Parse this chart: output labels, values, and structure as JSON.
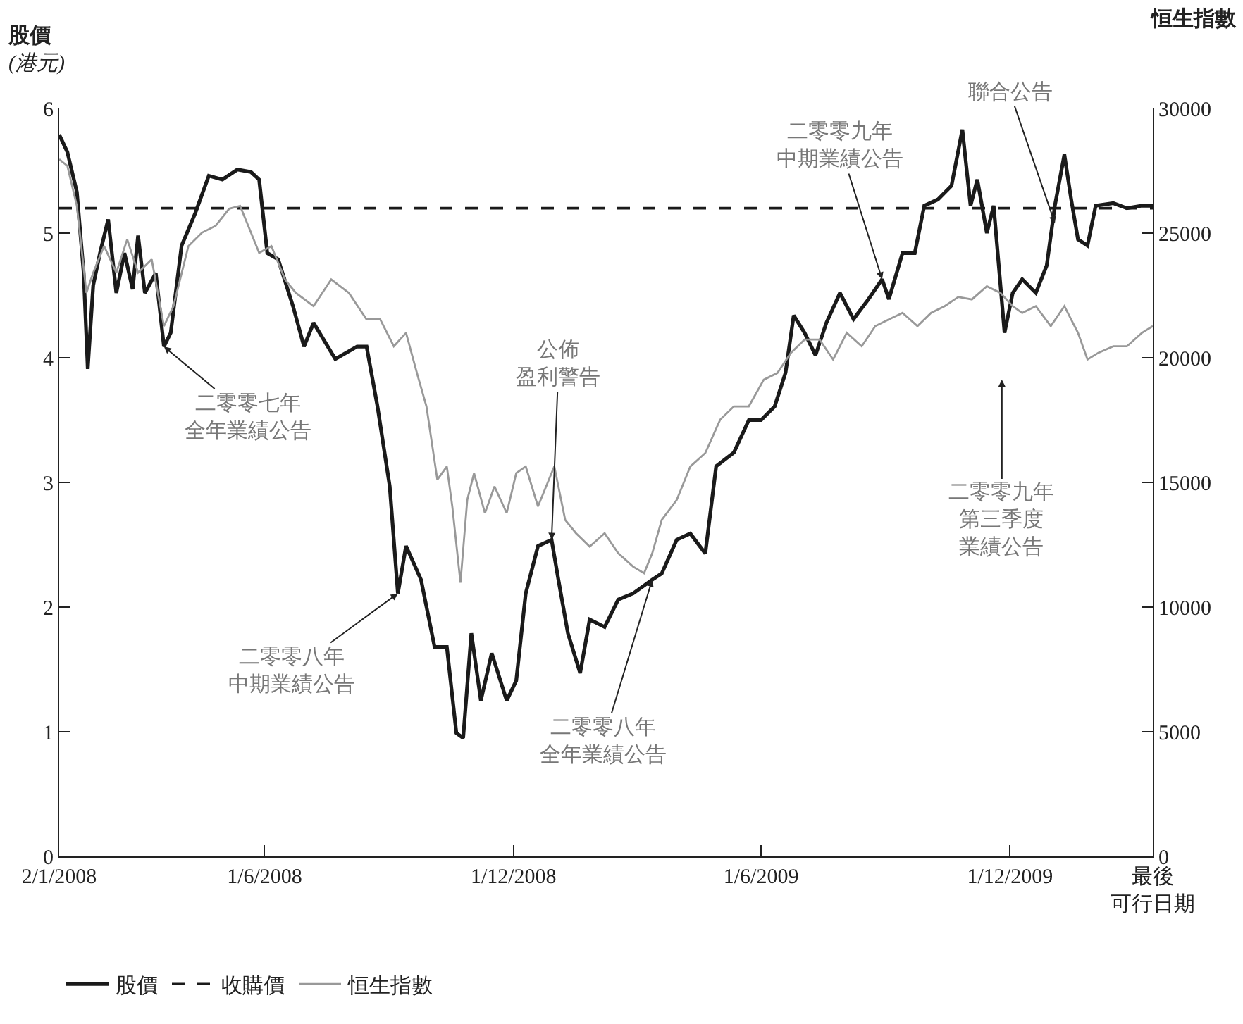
{
  "chart_data": {
    "type": "line",
    "ylabel": "股價\n(港元)",
    "y2label": "恒生指數",
    "xlim": [
      "2008-01-02",
      "2010-03-16"
    ],
    "xticks": [
      {
        "value": "2008-01-02",
        "label": "2/1/2008"
      },
      {
        "value": "2008-06-01",
        "label": "1/6/2008"
      },
      {
        "value": "2008-12-01",
        "label": "1/12/2008"
      },
      {
        "value": "2009-06-01",
        "label": "1/6/2009"
      },
      {
        "value": "2009-12-01",
        "label": "1/12/2009"
      },
      {
        "value": "2010-03-16",
        "label": "最後可行日期"
      }
    ],
    "ylim": [
      0,
      6
    ],
    "yticks": [
      0,
      1,
      2,
      3,
      4,
      5,
      6
    ],
    "y2lim": [
      0,
      30000
    ],
    "y2ticks": [
      0,
      5000,
      10000,
      15000,
      20000,
      25000,
      30000
    ],
    "legend": "bottom",
    "marker": "none",
    "series": [
      {
        "name": "股價",
        "color": "#1a1a1a",
        "line_style": "solid",
        "x": [
          "2008-01-02",
          "2008-01-08",
          "2008-01-15",
          "2008-01-20",
          "2008-01-23",
          "2008-01-27",
          "2008-02-01",
          "2008-02-07",
          "2008-02-13",
          "2008-02-19",
          "2008-02-25",
          "2008-02-29",
          "2008-03-05",
          "2008-03-13",
          "2008-03-19",
          "2008-03-24",
          "2008-04-01",
          "2008-04-11",
          "2008-04-21",
          "2008-05-01",
          "2008-05-12",
          "2008-05-22",
          "2008-05-28",
          "2008-06-03",
          "2008-06-11",
          "2008-06-22",
          "2008-06-30",
          "2008-07-07",
          "2008-07-23",
          "2008-08-08",
          "2008-08-15",
          "2008-08-23",
          "2008-09-01",
          "2008-09-07",
          "2008-09-13",
          "2008-09-24",
          "2008-10-04",
          "2008-10-13",
          "2008-10-20",
          "2008-10-25",
          "2008-10-31",
          "2008-11-07",
          "2008-11-15",
          "2008-11-26",
          "2008-12-03",
          "2008-12-10",
          "2008-12-19",
          "2008-12-29",
          "2009-01-03",
          "2009-01-10",
          "2009-01-19",
          "2009-01-26",
          "2009-02-06",
          "2009-02-16",
          "2009-02-27",
          "2009-03-13",
          "2009-03-20",
          "2009-03-31",
          "2009-04-10",
          "2009-04-21",
          "2009-04-29",
          "2009-05-12",
          "2009-05-23",
          "2009-06-01",
          "2009-06-11",
          "2009-06-19",
          "2009-06-25",
          "2009-07-03",
          "2009-07-11",
          "2009-07-19",
          "2009-07-29",
          "2009-08-08",
          "2009-08-19",
          "2009-08-29",
          "2009-09-03",
          "2009-09-13",
          "2009-09-22",
          "2009-09-29",
          "2009-10-09",
          "2009-10-19",
          "2009-10-27",
          "2009-11-02",
          "2009-11-07",
          "2009-11-14",
          "2009-11-19",
          "2009-11-27",
          "2009-12-03",
          "2009-12-10",
          "2009-12-20",
          "2009-12-28",
          "2010-01-03",
          "2010-01-10",
          "2010-01-15",
          "2010-01-20",
          "2010-01-27",
          "2010-02-02",
          "2010-02-15",
          "2010-02-25",
          "2010-03-08",
          "2010-03-16"
        ],
        "values": [
          5.79,
          5.65,
          5.33,
          4.68,
          3.91,
          4.58,
          4.84,
          5.11,
          4.52,
          4.84,
          4.55,
          4.98,
          4.52,
          4.68,
          4.09,
          4.2,
          4.9,
          5.16,
          5.46,
          5.43,
          5.51,
          5.49,
          5.43,
          4.84,
          4.79,
          4.41,
          4.09,
          4.28,
          3.99,
          4.09,
          4.09,
          3.61,
          2.97,
          2.11,
          2.49,
          2.22,
          1.68,
          1.68,
          0.99,
          0.95,
          1.79,
          1.25,
          1.63,
          1.25,
          1.41,
          2.11,
          2.49,
          2.54,
          2.22,
          1.79,
          1.47,
          1.9,
          1.84,
          2.06,
          2.11,
          2.22,
          2.27,
          2.54,
          2.59,
          2.43,
          3.13,
          3.24,
          3.5,
          3.5,
          3.61,
          3.88,
          4.34,
          4.2,
          4.02,
          4.28,
          4.52,
          4.31,
          4.47,
          4.63,
          4.47,
          4.84,
          4.84,
          5.22,
          5.27,
          5.38,
          5.83,
          5.22,
          5.43,
          5.0,
          5.22,
          4.2,
          4.52,
          4.63,
          4.52,
          4.74,
          5.22,
          5.63,
          5.27,
          4.95,
          4.9,
          5.22,
          5.24,
          5.2,
          5.22,
          5.22
        ]
      },
      {
        "name": "收購價",
        "color": "#1a1a1a",
        "line_style": "dashed",
        "x": [
          "2008-01-02",
          "2010-03-16"
        ],
        "values": [
          5.2,
          5.2
        ]
      },
      {
        "name": "恒生指數",
        "color": "#999999",
        "line_style": "solid",
        "axis": "y2",
        "x": [
          "2008-01-02",
          "2008-01-08",
          "2008-01-15",
          "2008-01-22",
          "2008-01-27",
          "2008-02-04",
          "2008-02-13",
          "2008-02-21",
          "2008-02-29",
          "2008-03-10",
          "2008-03-19",
          "2008-03-26",
          "2008-04-06",
          "2008-04-16",
          "2008-04-26",
          "2008-05-06",
          "2008-05-14",
          "2008-05-22",
          "2008-05-28",
          "2008-06-06",
          "2008-06-16",
          "2008-06-24",
          "2008-07-07",
          "2008-07-20",
          "2008-08-02",
          "2008-08-15",
          "2008-08-25",
          "2008-09-04",
          "2008-09-13",
          "2008-09-21",
          "2008-09-28",
          "2008-10-06",
          "2008-10-13",
          "2008-10-17",
          "2008-10-23",
          "2008-10-28",
          "2008-11-02",
          "2008-11-10",
          "2008-11-17",
          "2008-11-26",
          "2008-12-03",
          "2008-12-10",
          "2008-12-19",
          "2008-12-31",
          "2009-01-08",
          "2009-01-16",
          "2009-01-26",
          "2009-02-06",
          "2009-02-16",
          "2009-02-27",
          "2009-03-07",
          "2009-03-13",
          "2009-03-20",
          "2009-03-31",
          "2009-04-10",
          "2009-04-21",
          "2009-05-02",
          "2009-05-12",
          "2009-05-23",
          "2009-06-03",
          "2009-06-13",
          "2009-06-23",
          "2009-07-03",
          "2009-07-14",
          "2009-07-24",
          "2009-08-03",
          "2009-08-14",
          "2009-08-24",
          "2009-09-03",
          "2009-09-13",
          "2009-09-24",
          "2009-10-04",
          "2009-10-14",
          "2009-10-24",
          "2009-11-03",
          "2009-11-14",
          "2009-11-24",
          "2009-12-03",
          "2009-12-10",
          "2009-12-20",
          "2009-12-31",
          "2010-01-10",
          "2010-01-20",
          "2010-01-27",
          "2010-02-04",
          "2010-02-15",
          "2010-02-25",
          "2010-03-08",
          "2010-03-16"
        ],
        "values": [
          27960,
          27700,
          26090,
          22600,
          23410,
          24480,
          23410,
          24750,
          23410,
          23950,
          21270,
          22070,
          24480,
          25020,
          25290,
          25980,
          26090,
          25020,
          24210,
          24480,
          23140,
          22600,
          22070,
          23140,
          22600,
          21540,
          21540,
          20460,
          21000,
          19390,
          18050,
          15110,
          15640,
          14040,
          10980,
          14300,
          15370,
          13770,
          14840,
          13770,
          15370,
          15640,
          14040,
          15640,
          13500,
          12960,
          12430,
          12960,
          12160,
          11620,
          11360,
          12160,
          13500,
          14300,
          15640,
          16180,
          17520,
          18050,
          18050,
          19120,
          19390,
          20200,
          20730,
          20730,
          19930,
          21000,
          20460,
          21270,
          21540,
          21800,
          21270,
          21800,
          22070,
          22440,
          22340,
          22870,
          22600,
          22070,
          21800,
          22070,
          21270,
          22070,
          21000,
          19930,
          20200,
          20460,
          20460,
          21000,
          21270
        ]
      }
    ],
    "annotations": [
      {
        "text": "二零零七年全年業績公告",
        "x": "2008-03-19",
        "y": 4.09
      },
      {
        "text": "二零零八年中期業績公告",
        "x": "2008-09-07",
        "y": 2.11
      },
      {
        "text": "公佈盈利警告",
        "x": "2008-12-29",
        "y": 2.54
      },
      {
        "text": "二零零八年全年業績公告",
        "x": "2009-03-13",
        "y": 2.22
      },
      {
        "text": "二零零九年中期業績公告",
        "x": "2009-08-29",
        "y": 4.63
      },
      "二零零九年第三季度業績公告",
      {
        "text": "聯合公告",
        "x": "2010-01-03",
        "y": 5.08
      }
    ]
  }
}
